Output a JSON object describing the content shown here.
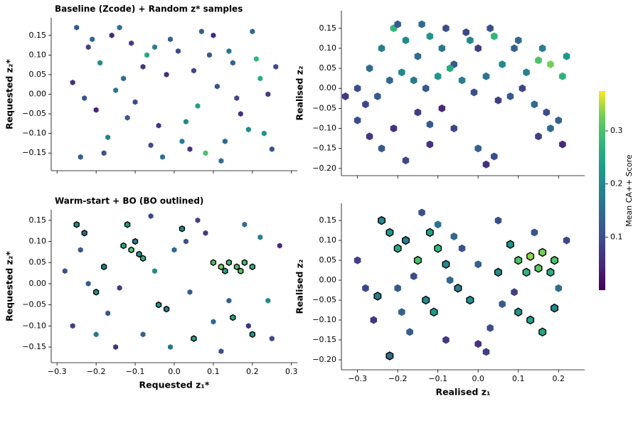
{
  "chart_data": [
    {
      "type": "hexbin",
      "title": "Baseline (Zcode) + Random z* samples",
      "ylabel": "Requested z₂*",
      "colormap": "viridis",
      "xticklabels": false,
      "xlim": [
        -0.315,
        0.315
      ],
      "ylim": [
        -0.195,
        0.195
      ],
      "xticks": [
        -0.3,
        -0.2,
        -0.1,
        0,
        0.1,
        0.2,
        0.3
      ],
      "yticks": [
        {
          "value": -0.15,
          "label": "−0.15"
        },
        {
          "value": -0.1,
          "label": "−0.10"
        },
        {
          "value": -0.05,
          "label": "−0.05"
        },
        {
          "value": 0,
          "label": "0.00"
        },
        0.05,
        {
          "value": 0.1,
          "label": "0.10"
        },
        0.15
      ],
      "x": [
        -0.25,
        -0.22,
        -0.19,
        -0.16,
        -0.13,
        -0.1,
        -0.07,
        -0.04,
        -0.01,
        0.02,
        0.05,
        0.08,
        0.11,
        0.14,
        0.17,
        0.2,
        0.23,
        0.26,
        -0.24,
        -0.2,
        -0.15,
        -0.11,
        -0.06,
        -0.02,
        0.03,
        0.07,
        0.12,
        0.16,
        0.21,
        0.25,
        -0.26,
        -0.21,
        -0.17,
        -0.12,
        -0.08,
        -0.03,
        0.01,
        0.06,
        0.1,
        0.15,
        0.19,
        0.24,
        -0.23,
        -0.14,
        -0.05,
        0.04,
        0.13,
        0.22,
        -0.18,
        0.09
      ],
      "y": [
        0.17,
        0.12,
        0.08,
        0.15,
        0.04,
        -0.02,
        0.1,
        -0.08,
        0.14,
        -0.12,
        0.06,
        -0.15,
        0.02,
        0.11,
        -0.05,
        0.16,
        -0.1,
        0.07,
        -0.16,
        -0.04,
        0.01,
        0.13,
        -0.13,
        0.05,
        -0.07,
        0.16,
        -0.17,
        -0.01,
        0.09,
        -0.14,
        0.03,
        0.14,
        -0.11,
        -0.06,
        0.07,
        -0.16,
        0.11,
        -0.03,
        0.15,
        0.08,
        -0.09,
        0.0,
        -0.01,
        0.17,
        0.12,
        -0.14,
        -0.12,
        0.04,
        -0.15,
        0.1
      ],
      "values": [
        0.12,
        0.08,
        0.2,
        0.05,
        0.15,
        0.1,
        0.25,
        0.07,
        0.13,
        0.18,
        0.09,
        0.3,
        0.11,
        0.16,
        0.06,
        0.14,
        0.22,
        0.1,
        0.12,
        0.04,
        0.17,
        0.08,
        0.1,
        0.05,
        0.2,
        0.13,
        0.15,
        0.09,
        0.28,
        0.11,
        0.06,
        0.14,
        0.19,
        0.12,
        0.07,
        0.16,
        0.1,
        0.24,
        0.05,
        0.13,
        0.2,
        0.08,
        0.11,
        0.15,
        0.18,
        0.06,
        0.14,
        0.26,
        0.1,
        0.12
      ]
    },
    {
      "type": "hexbin",
      "ylabel": "Realised z₂",
      "colormap": "viridis",
      "xticklabels": false,
      "xlim": [
        -0.34,
        0.265
      ],
      "ylim": [
        -0.218,
        0.194
      ],
      "xticks": [
        -0.3,
        -0.2,
        -0.1,
        0,
        0.1,
        0.2
      ],
      "yticks": [
        {
          "value": -0.2,
          "label": "−0.20"
        },
        {
          "value": -0.15,
          "label": "−0.15"
        },
        {
          "value": -0.1,
          "label": "−0.10"
        },
        {
          "value": -0.05,
          "label": "−0.05"
        },
        {
          "value": 0,
          "label": "0.00"
        },
        0.05,
        {
          "value": 0.1,
          "label": "0.10"
        },
        0.15
      ],
      "x": [
        -0.3,
        -0.27,
        -0.24,
        -0.21,
        -0.18,
        -0.15,
        -0.12,
        -0.09,
        -0.06,
        -0.03,
        0.0,
        0.03,
        0.06,
        0.09,
        0.12,
        0.15,
        0.18,
        0.21,
        -0.28,
        -0.25,
        -0.22,
        -0.19,
        -0.16,
        -0.13,
        -0.1,
        -0.07,
        -0.04,
        -0.01,
        0.02,
        0.05,
        0.08,
        0.11,
        0.14,
        0.17,
        0.2,
        -0.3,
        -0.27,
        -0.24,
        -0.21,
        -0.18,
        -0.15,
        -0.12,
        -0.09,
        -0.06,
        0.0,
        0.02,
        0.04,
        0.15,
        0.18,
        0.21,
        -0.2,
        -0.14,
        -0.08,
        -0.02,
        0.04,
        0.1,
        0.16,
        0.22,
        -0.33,
        -0.12
      ],
      "y": [
        0.0,
        0.05,
        0.1,
        0.15,
        0.12,
        0.08,
        0.13,
        0.1,
        0.06,
        0.14,
        0.1,
        0.15,
        0.06,
        0.1,
        0.04,
        0.07,
        0.06,
        0.03,
        -0.04,
        -0.02,
        0.02,
        0.04,
        0.02,
        0.0,
        0.03,
        0.05,
        0.02,
        -0.01,
        0.03,
        -0.03,
        -0.02,
        0.0,
        -0.04,
        -0.06,
        -0.08,
        -0.08,
        -0.12,
        -0.15,
        -0.1,
        -0.18,
        -0.06,
        -0.09,
        -0.05,
        -0.1,
        -0.15,
        -0.19,
        -0.17,
        -0.12,
        -0.1,
        -0.14,
        0.16,
        0.16,
        0.15,
        0.12,
        0.13,
        0.12,
        0.1,
        0.08,
        -0.02,
        -0.14
      ],
      "values": [
        0.1,
        0.15,
        0.18,
        0.28,
        0.2,
        0.15,
        0.22,
        0.17,
        0.12,
        0.09,
        0.08,
        0.1,
        0.2,
        0.13,
        0.18,
        0.3,
        0.33,
        0.27,
        0.09,
        0.12,
        0.14,
        0.2,
        0.17,
        0.12,
        0.22,
        0.26,
        0.18,
        0.1,
        0.16,
        0.08,
        0.12,
        0.09,
        0.15,
        0.1,
        0.13,
        0.1,
        0.07,
        0.12,
        0.06,
        0.09,
        0.08,
        0.12,
        0.05,
        0.09,
        0.13,
        0.06,
        0.1,
        0.08,
        0.14,
        0.05,
        0.12,
        0.15,
        0.1,
        0.2,
        0.28,
        0.14,
        0.18,
        0.22,
        0.07,
        0.06
      ]
    },
    {
      "type": "hexbin",
      "title": "Warm-start + BO (BO outlined)",
      "xlabel": "Requested z₁*",
      "ylabel": "Requested z₂*",
      "colormap": "viridis",
      "xticklabels": true,
      "xlim": [
        -0.315,
        0.315
      ],
      "ylim": [
        -0.187,
        0.175
      ],
      "xticks": [
        {
          "value": -0.3,
          "label": "−0.3"
        },
        {
          "value": -0.2,
          "label": "−0.2"
        },
        {
          "value": -0.1,
          "label": "−0.1"
        },
        {
          "value": 0,
          "label": "0.0"
        },
        0.1,
        0.2,
        0.3
      ],
      "yticks": [
        {
          "value": -0.15,
          "label": "−0.15"
        },
        {
          "value": -0.1,
          "label": "−0.10"
        },
        {
          "value": -0.05,
          "label": "−0.05"
        },
        {
          "value": 0,
          "label": "0.00"
        },
        0.05,
        {
          "value": 0.1,
          "label": "0.10"
        },
        0.15
      ],
      "x": [
        -0.25,
        -0.23,
        -0.13,
        -0.11,
        -0.09,
        -0.1,
        -0.08,
        0.1,
        0.12,
        0.14,
        0.16,
        0.18,
        0.2,
        0.13,
        0.17,
        -0.04,
        -0.02,
        0.02,
        -0.18,
        -0.2,
        0.15,
        0.2,
        -0.12,
        0.05,
        -0.28,
        -0.26,
        -0.22,
        -0.15,
        -0.06,
        0.0,
        0.04,
        0.08,
        0.12,
        0.18,
        0.24,
        0.27,
        -0.17,
        -0.08,
        -0.01,
        0.06,
        0.1,
        0.22,
        0.25,
        -0.24,
        -0.14,
        -0.05,
        0.03,
        0.14,
        0.19,
        -0.2
      ],
      "y": [
        0.14,
        0.12,
        0.09,
        0.08,
        0.07,
        0.1,
        0.06,
        0.05,
        0.04,
        0.05,
        0.04,
        0.05,
        0.04,
        0.03,
        0.03,
        -0.05,
        -0.06,
        0.13,
        0.04,
        -0.02,
        -0.08,
        -0.12,
        0.14,
        -0.13,
        0.03,
        -0.1,
        0.0,
        -0.15,
        0.16,
        0.08,
        -0.02,
        0.12,
        -0.16,
        0.14,
        -0.04,
        0.09,
        -0.07,
        -0.12,
        -0.15,
        0.15,
        -0.09,
        0.11,
        -0.13,
        0.08,
        -0.01,
        0.03,
        0.1,
        -0.04,
        -0.1,
        -0.12
      ],
      "values": [
        0.2,
        0.15,
        0.25,
        0.3,
        0.22,
        0.18,
        0.27,
        0.3,
        0.33,
        0.28,
        0.3,
        0.29,
        0.27,
        0.25,
        0.31,
        0.22,
        0.19,
        0.2,
        0.18,
        0.21,
        0.25,
        0.22,
        0.23,
        0.24,
        0.1,
        0.08,
        0.12,
        0.06,
        0.09,
        0.14,
        0.12,
        0.07,
        0.1,
        0.15,
        0.2,
        0.05,
        0.11,
        0.13,
        0.16,
        0.08,
        0.14,
        0.18,
        0.09,
        0.12,
        0.07,
        0.2,
        0.1,
        0.13,
        0.06,
        0.17
      ],
      "outline": [
        true,
        true,
        true,
        true,
        true,
        true,
        true,
        true,
        true,
        true,
        true,
        true,
        true,
        true,
        true,
        true,
        true,
        true,
        true,
        true,
        true,
        true,
        true,
        true,
        false,
        false,
        false,
        false,
        false,
        false,
        false,
        false,
        false,
        false,
        false,
        false,
        false,
        false,
        false,
        false,
        false,
        false,
        false,
        false,
        false,
        false,
        false,
        false,
        false,
        false
      ]
    },
    {
      "type": "hexbin",
      "xlabel": "Realised z₁",
      "ylabel": "Realised z₂",
      "colormap": "viridis",
      "xticklabels": true,
      "xlim": [
        -0.34,
        0.265
      ],
      "ylim": [
        -0.225,
        0.193
      ],
      "xticks": [
        {
          "value": -0.3,
          "label": "−0.3"
        },
        {
          "value": -0.2,
          "label": "−0.2"
        },
        {
          "value": -0.1,
          "label": "−0.1"
        },
        {
          "value": 0,
          "label": "0.0"
        },
        0.1,
        0.2
      ],
      "yticks": [
        {
          "value": -0.2,
          "label": "−0.20"
        },
        {
          "value": -0.15,
          "label": "−0.15"
        },
        {
          "value": -0.1,
          "label": "−0.10"
        },
        {
          "value": -0.05,
          "label": "−0.05"
        },
        {
          "value": 0,
          "label": "0.00"
        },
        0.05,
        {
          "value": 0.1,
          "label": "0.10"
        },
        0.15
      ],
      "x": [
        -0.24,
        -0.22,
        -0.2,
        -0.18,
        -0.15,
        -0.12,
        -0.1,
        -0.08,
        0.1,
        0.13,
        0.16,
        0.19,
        0.12,
        0.15,
        0.18,
        0.1,
        0.13,
        0.19,
        0.16,
        -0.05,
        -0.02,
        -0.13,
        -0.11,
        -0.22,
        -0.25,
        0.05,
        0.08,
        -0.2,
        -0.16,
        -0.3,
        -0.28,
        -0.26,
        -0.07,
        -0.04,
        0.0,
        0.03,
        0.0,
        0.02,
        -0.17,
        -0.1,
        0.06,
        0.2,
        0.22,
        -0.14,
        -0.06,
        0.09,
        0.14,
        -0.08,
        0.05,
        -0.19
      ],
      "y": [
        0.15,
        0.12,
        0.08,
        0.1,
        0.05,
        0.12,
        0.08,
        0.04,
        0.05,
        0.06,
        0.07,
        0.05,
        0.02,
        0.03,
        0.02,
        -0.08,
        -0.1,
        -0.07,
        -0.13,
        -0.02,
        -0.05,
        -0.05,
        -0.08,
        -0.19,
        -0.04,
        0.02,
        0.09,
        -0.02,
        0.01,
        0.05,
        -0.02,
        -0.1,
        0.0,
        0.08,
        0.04,
        -0.12,
        -0.16,
        -0.18,
        -0.13,
        0.14,
        -0.06,
        -0.02,
        0.1,
        0.17,
        0.11,
        -0.03,
        0.12,
        -0.15,
        0.15,
        -0.08
      ],
      "values": [
        0.2,
        0.22,
        0.25,
        0.18,
        0.3,
        0.24,
        0.28,
        0.2,
        0.3,
        0.34,
        0.33,
        0.3,
        0.27,
        0.31,
        0.26,
        0.22,
        0.24,
        0.2,
        0.25,
        0.18,
        0.21,
        0.2,
        0.23,
        0.15,
        0.18,
        0.2,
        0.22,
        0.12,
        0.1,
        0.08,
        0.09,
        0.07,
        0.14,
        0.11,
        0.13,
        0.1,
        0.06,
        0.08,
        0.12,
        0.16,
        0.12,
        0.15,
        0.09,
        0.1,
        0.14,
        0.08,
        0.11,
        0.07,
        0.1,
        0.13
      ],
      "outline": [
        true,
        true,
        true,
        true,
        true,
        true,
        true,
        true,
        true,
        true,
        true,
        true,
        true,
        true,
        true,
        true,
        true,
        true,
        true,
        true,
        true,
        true,
        true,
        true,
        true,
        true,
        true,
        false,
        false,
        false,
        false,
        false,
        false,
        false,
        false,
        false,
        false,
        false,
        false,
        false,
        false,
        false,
        false,
        false,
        false,
        false,
        false,
        false,
        false,
        false
      ]
    }
  ],
  "colorbar": {
    "label": "Mean CA++ Score",
    "lim": [
      0,
      0.375
    ],
    "ticks": [
      0.1,
      0.2,
      0.3
    ]
  }
}
